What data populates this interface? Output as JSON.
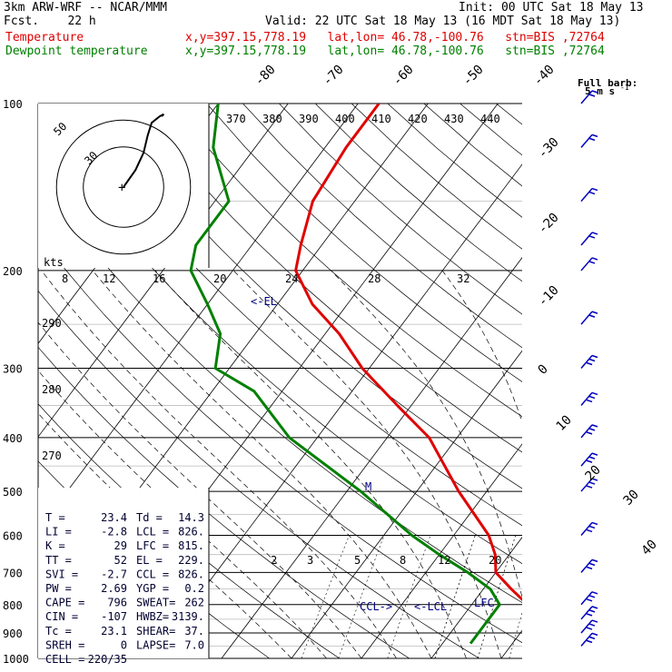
{
  "header": {
    "model": "3km ARW-WRF -- NCAR/MMM",
    "init": "Init: 00 UTC Sat 18 May 13",
    "fcst": "Fcst.    22 h",
    "valid": "Valid: 22 UTC Sat 18 May 13 (16 MDT Sat 18 May 13)",
    "temp_label": "Temperature",
    "temp_info": "x,y=397.15,778.19   lat,lon= 46.78,-100.76   stn=BIS ,72764",
    "dew_label": "Dewpoint temperature",
    "dew_info": "x,y=397.15,778.19   lat,lon= 46.78,-100.76   stn=BIS ,72764"
  },
  "wind_key": {
    "title": "Full barb:",
    "value": "5 m s",
    "exp": "-1"
  },
  "parcel": {
    "title": "Parcel Info",
    "rows": [
      {
        "l": "T    =",
        "lv": "23.4",
        "r": "Td  =",
        "rv": "14.3"
      },
      {
        "l": "LI   =",
        "lv": "-2.8",
        "r": "LCL =",
        "rv": "826."
      },
      {
        "l": "K    =",
        "lv": "29",
        "r": "LFC =",
        "rv": "815."
      },
      {
        "l": "TT   =",
        "lv": "52",
        "r": "EL  =",
        "rv": "229."
      },
      {
        "l": "SVI  =",
        "lv": "-2.7",
        "r": "CCL =",
        "rv": "826."
      },
      {
        "l": "PW   =",
        "lv": "2.69",
        "r": "YGP =",
        "rv": "0.2"
      },
      {
        "l": "CAPE =",
        "lv": "796",
        "r": "SWEAT=",
        "rv": "262"
      },
      {
        "l": "CIN  =",
        "lv": "-107",
        "r": "HWBZ=",
        "rv": "3139."
      },
      {
        "l": "Tc   =",
        "lv": "23.1",
        "r": "SHEAR=",
        "rv": "37."
      },
      {
        "l": "SREH =",
        "lv": "0",
        "r": "LAPSE=",
        "rv": "7.0"
      },
      {
        "l": "CELL =",
        "lv": "220/35",
        "r": "",
        "rv": ""
      }
    ]
  },
  "level_labels": {
    "el": "<-EL",
    "ccl": "CCL->",
    "lcl": "<-LCL",
    "lfc": "LFC",
    "m": "M"
  },
  "hodograph": {
    "units": "kts",
    "ring_labels": [
      "50",
      "30"
    ]
  },
  "colors": {
    "temperature": "#e00000",
    "dewpoint": "#008000",
    "barbs": "#0000c0",
    "lines": "#000000"
  },
  "chart_data": {
    "type": "line",
    "subtype": "skew-T log-P sounding",
    "y_axis": {
      "label": "",
      "scale": "log",
      "ylim": [
        1000,
        100
      ],
      "ticks": [
        100,
        200,
        300,
        400,
        500,
        600,
        700,
        800,
        900,
        1000
      ]
    },
    "isotherm_labels": [
      -80,
      -70,
      -60,
      -50,
      -40,
      -30,
      -20,
      -10,
      0,
      10,
      20,
      30,
      40
    ],
    "theta_labels": [
      370,
      380,
      390,
      400,
      410,
      420,
      430,
      440
    ],
    "theta_e_labels": [
      290,
      280,
      270
    ],
    "mixing_ratio_labels": [
      2,
      3,
      5,
      8,
      12,
      20
    ],
    "mixing_ratio_top_labels": [
      8,
      12,
      16,
      20,
      24,
      28,
      32
    ],
    "series": [
      {
        "name": "Temperature",
        "p": [
          100,
          120,
          150,
          180,
          200,
          230,
          260,
          300,
          350,
          400,
          500,
          600,
          650,
          700,
          750,
          800,
          850,
          900,
          940
        ],
        "T": [
          -57,
          -57,
          -56,
          -53,
          -51,
          -45,
          -38,
          -31,
          -22,
          -14,
          -4,
          5,
          8,
          10,
          14,
          18,
          22,
          26,
          29
        ]
      },
      {
        "name": "Dewpoint temperature",
        "p": [
          100,
          120,
          150,
          180,
          200,
          230,
          260,
          300,
          330,
          400,
          500,
          600,
          650,
          700,
          750,
          800,
          850,
          900,
          940
        ],
        "T": [
          -80,
          -76,
          -68,
          -68,
          -66,
          -60,
          -55,
          -52,
          -44,
          -34,
          -18,
          -6,
          0,
          6,
          11,
          14,
          14,
          14,
          14
        ]
      }
    ],
    "hodograph_uv_kts": [
      [
        0,
        0
      ],
      [
        6,
        8
      ],
      [
        10,
        16
      ],
      [
        12,
        24
      ],
      [
        14,
        30
      ],
      [
        18,
        33
      ],
      [
        20,
        34
      ],
      [
        19,
        33
      ]
    ],
    "wind_barb_pressures": [
      100,
      120,
      150,
      180,
      200,
      250,
      300,
      350,
      400,
      450,
      500,
      600,
      700,
      800,
      850,
      900,
      950
    ]
  }
}
